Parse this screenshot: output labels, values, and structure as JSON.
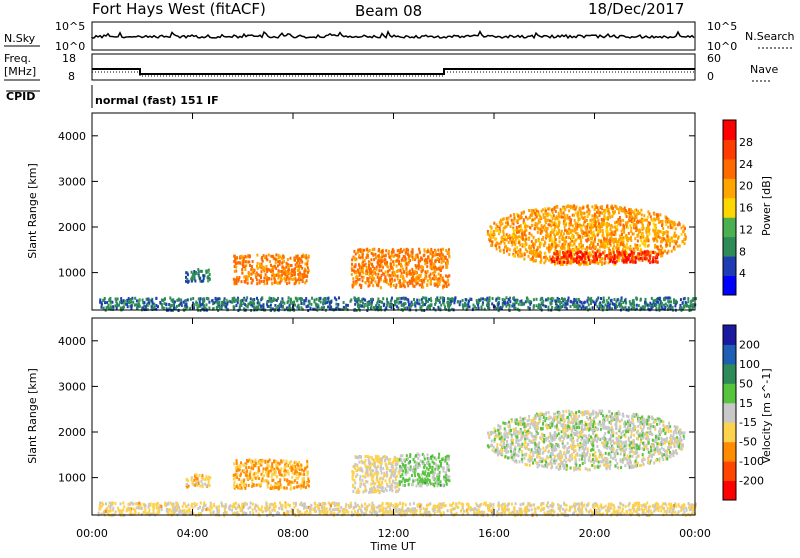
{
  "header": {
    "station": "Fort Hays West (fitACF)",
    "beam": "Beam 08",
    "date": "18/Dec/2017"
  },
  "noise_panel": {
    "left_label": "N.Sky",
    "right_label": "N.Search",
    "left_ticks": [
      "10^5",
      "10^0"
    ],
    "right_ticks": [
      "10^5",
      "10^0"
    ]
  },
  "freq_panel": {
    "left_label_1": "Freq.",
    "left_label_2": "[MHz]",
    "right_label": "Nave",
    "left_ticks": [
      "18",
      "8"
    ],
    "right_ticks": [
      "60",
      "0"
    ]
  },
  "cpid": {
    "label": "CPID",
    "mode": "normal (fast) 151 IF"
  },
  "x_axis": {
    "label": "Time UT",
    "ticks": [
      "00:00",
      "04:00",
      "08:00",
      "12:00",
      "16:00",
      "20:00",
      "00:00"
    ]
  },
  "power_panel": {
    "ylabel": "Slant Range [km]",
    "colorbar_label": "Power [dB]",
    "colorbar_ticks": [
      "28",
      "24",
      "20",
      "16",
      "12",
      "8",
      "4"
    ],
    "colors": [
      "#0000ff",
      "#1e3cb4",
      "#2e8b57",
      "#4caf50",
      "#ffd700",
      "#ffa500",
      "#ff6a00",
      "#ff3c00",
      "#ff0000"
    ]
  },
  "velocity_panel": {
    "ylabel": "Slant Range [km]",
    "colorbar_label": "Velocity [m s^-1]",
    "colorbar_ticks": [
      "200",
      "100",
      "50",
      "15",
      "-15",
      "-50",
      "-100",
      "-200"
    ],
    "colors": [
      "#ff0000",
      "#ff4500",
      "#ff8c00",
      "#ffd24d",
      "#c8c8c8",
      "#56c43c",
      "#2e8b57",
      "#1e5fb4",
      "#1a1aa0"
    ]
  },
  "chart_data": [
    {
      "type": "heatmap",
      "title": "Power [dB]",
      "xlabel": "Time UT",
      "ylabel": "Slant Range [km]",
      "xlim": [
        0,
        24
      ],
      "ylim": [
        180,
        4500
      ],
      "yticks": [
        1000,
        2000,
        3000,
        4000
      ],
      "clim": [
        0,
        32
      ],
      "regions": [
        {
          "t0": 3.7,
          "t1": 4.7,
          "r0": 820,
          "r1": 1100,
          "value": 8
        },
        {
          "t0": 5.6,
          "t1": 8.6,
          "r0": 780,
          "r1": 1420,
          "value": 22
        },
        {
          "t0": 10.3,
          "t1": 14.2,
          "r0": 700,
          "r1": 1550,
          "value": 22
        },
        {
          "t0": 15.7,
          "t1": 23.6,
          "r0": 1200,
          "r1": 2500,
          "value": 20
        },
        {
          "t0": 18.2,
          "t1": 22.5,
          "r0": 1250,
          "r1": 1500,
          "value": 28
        },
        {
          "t0": 0.2,
          "t1": 24.0,
          "r0": 200,
          "r1": 480,
          "value": 8
        }
      ]
    },
    {
      "type": "heatmap",
      "title": "Velocity [m s^-1]",
      "xlabel": "Time UT",
      "ylabel": "Slant Range [km]",
      "xlim": [
        0,
        24
      ],
      "ylim": [
        180,
        4500
      ],
      "yticks": [
        1000,
        2000,
        3000,
        4000
      ],
      "clim": [
        -250,
        250
      ],
      "regions": [
        {
          "t0": 3.7,
          "t1": 4.7,
          "r0": 820,
          "r1": 1100,
          "value": -60
        },
        {
          "t0": 5.6,
          "t1": 8.6,
          "r0": 780,
          "r1": 1420,
          "value": -90
        },
        {
          "t0": 10.3,
          "t1": 12.2,
          "r0": 700,
          "r1": 1500,
          "value": -30
        },
        {
          "t0": 12.2,
          "t1": 14.2,
          "r0": 850,
          "r1": 1550,
          "value": 40
        },
        {
          "t0": 15.7,
          "t1": 23.6,
          "r0": 1200,
          "r1": 2500,
          "value": 0
        },
        {
          "t0": 0.2,
          "t1": 24.0,
          "r0": 200,
          "r1": 480,
          "value": -40
        }
      ]
    }
  ]
}
